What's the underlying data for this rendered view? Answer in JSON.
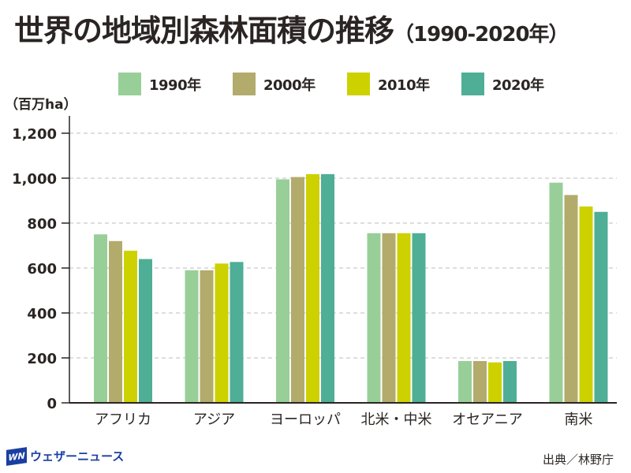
{
  "header": {
    "title": "世界の地域別森林面積の推移",
    "subtitle": "（1990-2020年）",
    "unit_label": "（百万ha）"
  },
  "footer": {
    "brand": "ウェザーニュース",
    "brand_mark": "WN",
    "source": "出典／林野庁"
  },
  "colors": {
    "1990": "#98cf98",
    "2000": "#b2ab6c",
    "2010": "#cdd100",
    "2020": "#4fae96",
    "axis": "#2a2523",
    "grid": "#bcbcbc",
    "brand": "#1a3fa0"
  },
  "chart_data": {
    "type": "bar",
    "title": "世界の地域別森林面積の推移（1990-2020年）",
    "xlabel": "",
    "ylabel": "（百万ha）",
    "ylim": [
      0,
      1200
    ],
    "yticks": [
      0,
      200,
      400,
      600,
      800,
      1000,
      1200
    ],
    "ytick_labels": [
      "0",
      "200",
      "400",
      "600",
      "800",
      "1,000",
      "1,200"
    ],
    "grid": true,
    "legend_position": "top",
    "categories": [
      "アフリカ",
      "アジア",
      "ヨーロッパ",
      "北米・中米",
      "オセアニア",
      "南米"
    ],
    "series": [
      {
        "name": "1990年",
        "key": "1990",
        "values": [
          750,
          590,
          995,
          755,
          186,
          980
        ]
      },
      {
        "name": "2000年",
        "key": "2000",
        "values": [
          720,
          590,
          1005,
          755,
          186,
          925
        ]
      },
      {
        "name": "2010年",
        "key": "2010",
        "values": [
          677,
          620,
          1018,
          755,
          180,
          874
        ]
      },
      {
        "name": "2020年",
        "key": "2020",
        "values": [
          640,
          627,
          1018,
          755,
          186,
          850
        ]
      }
    ]
  }
}
